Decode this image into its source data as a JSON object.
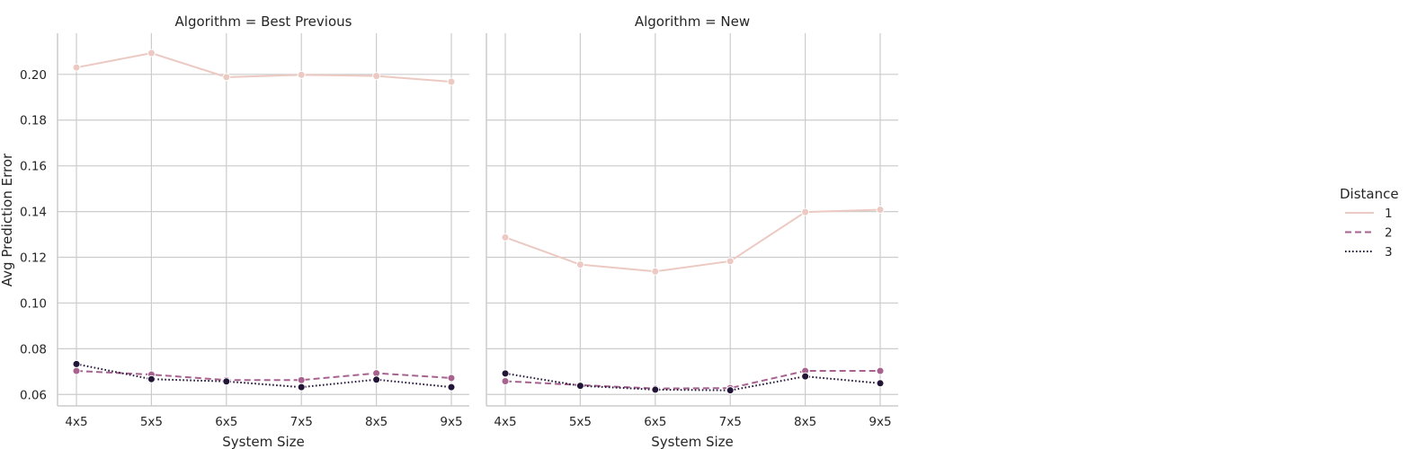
{
  "chart_data": {
    "type": "line",
    "categories": [
      "4x5",
      "5x5",
      "6x5",
      "7x5",
      "8x5",
      "9x5"
    ],
    "xlabel": "System Size",
    "ylabel": "Avg Prediction Error",
    "ylim": [
      0.055,
      0.218
    ],
    "yticks": [
      "0.06",
      "0.08",
      "0.10",
      "0.12",
      "0.14",
      "0.16",
      "0.18",
      "0.20"
    ],
    "grid": true,
    "legend": {
      "title": "Distance",
      "placement": "right",
      "entries": [
        "1",
        "2",
        "3"
      ]
    },
    "series_colors": [
      "#ecc9c2",
      "#a7628f",
      "#221538"
    ],
    "series_dash": [
      "solid",
      "dashed",
      "dotted"
    ],
    "facets": [
      {
        "title": "Algorithm = Best Previous",
        "series": [
          {
            "name": "1",
            "values": [
              0.203,
              0.2093,
              0.1988,
              0.1998,
              0.1993,
              0.1968
            ]
          },
          {
            "name": "2",
            "values": [
              0.0703,
              0.0687,
              0.0663,
              0.0663,
              0.0693,
              0.0672
            ]
          },
          {
            "name": "3",
            "values": [
              0.0733,
              0.0667,
              0.0657,
              0.0632,
              0.0665,
              0.0632
            ]
          }
        ]
      },
      {
        "title": "Algorithm = New",
        "series": [
          {
            "name": "1",
            "values": [
              0.1287,
              0.1168,
              0.1138,
              0.1183,
              0.1398,
              0.1408
            ]
          },
          {
            "name": "2",
            "values": [
              0.0658,
              0.0641,
              0.0626,
              0.0628,
              0.0703,
              0.0703
            ]
          },
          {
            "name": "3",
            "values": [
              0.0692,
              0.0638,
              0.0621,
              0.0618,
              0.0679,
              0.0649
            ]
          }
        ]
      }
    ]
  }
}
